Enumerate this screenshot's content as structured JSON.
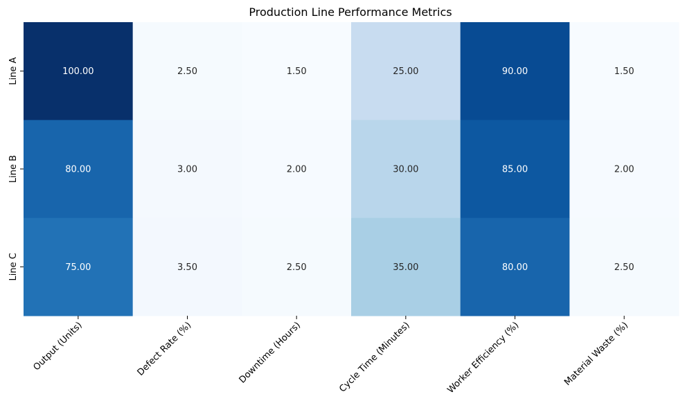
{
  "chart_data": {
    "type": "heatmap",
    "title": "Production Line Performance Metrics",
    "colormap": "Blues",
    "rows": [
      "Line A",
      "Line B",
      "Line C"
    ],
    "columns": [
      "Output (Units)",
      "Defect Rate (%)",
      "Downtime (Hours)",
      "Cycle Time (Minutes)",
      "Worker Efficiency (%)",
      "Material Waste (%)"
    ],
    "values": [
      [
        100.0,
        2.5,
        1.5,
        25.0,
        90.0,
        1.5
      ],
      [
        80.0,
        3.0,
        2.0,
        30.0,
        85.0,
        2.0
      ],
      [
        75.0,
        3.5,
        2.5,
        35.0,
        80.0,
        2.5
      ]
    ],
    "value_format": "0.00",
    "vmin": 1.5,
    "vmax": 100,
    "colorbar": false,
    "grid": false
  }
}
